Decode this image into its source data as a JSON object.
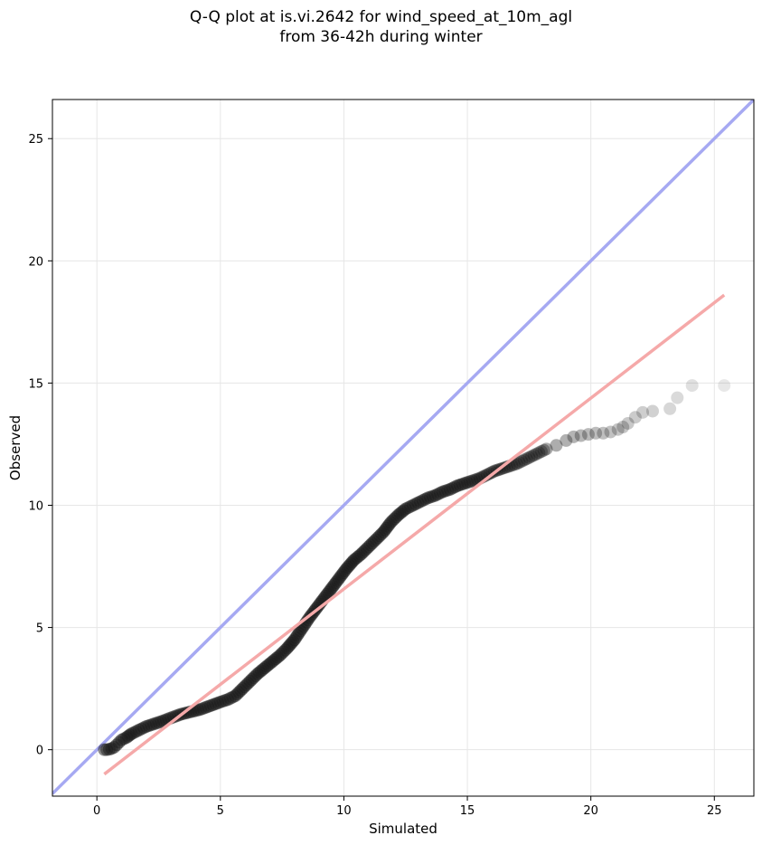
{
  "chart_data": {
    "type": "scatter",
    "title": [
      "Q-Q plot at is.vi.2642 for wind_speed_at_10m_agl",
      "from 36-42h during winter"
    ],
    "xlabel": "Simulated",
    "ylabel": "Observed",
    "xlim": [
      -1.8,
      26.6
    ],
    "ylim": [
      -1.9,
      26.6
    ],
    "xticks": [
      0,
      5,
      10,
      15,
      20,
      25
    ],
    "yticks": [
      0,
      5,
      10,
      15,
      20,
      25
    ],
    "grid": true,
    "colors": {
      "points": "#1a1a1a",
      "identity_line": "#a6a9f2",
      "fit_line": "#f5a9a9",
      "grid": "#e6e6e6"
    },
    "identity_line": {
      "x": [
        -1.8,
        26.6
      ],
      "y": [
        -1.8,
        26.6
      ]
    },
    "fit_line": {
      "x": [
        0.3,
        25.4
      ],
      "y": [
        -1.0,
        18.6
      ]
    },
    "quantiles": {
      "x": [
        0.3,
        0.4,
        0.5,
        0.6,
        0.7,
        0.8,
        0.9,
        1.0,
        1.2,
        1.4,
        1.6,
        1.8,
        2.0,
        2.3,
        2.6,
        3.0,
        3.4,
        3.8,
        4.2,
        4.6,
        5.0,
        5.3,
        5.6,
        5.9,
        6.2,
        6.5,
        6.8,
        7.1,
        7.4,
        7.7,
        8.0,
        8.3,
        8.6,
        8.9,
        9.2,
        9.5,
        9.8,
        10.1,
        10.4,
        10.7,
        11.0,
        11.3,
        11.6,
        11.9,
        12.2,
        12.5,
        12.8,
        13.1,
        13.4,
        13.7,
        14.0,
        14.3,
        14.6,
        14.9,
        15.2,
        15.5,
        15.8,
        16.1,
        16.4,
        16.7,
        17.0,
        17.3,
        17.6,
        17.9,
        18.2,
        18.6,
        19.0,
        19.3,
        19.6,
        19.9,
        20.2,
        20.5,
        20.8,
        21.1,
        21.3,
        21.5,
        21.8,
        22.1,
        22.5,
        23.2,
        23.5,
        24.1,
        25.4
      ],
      "y": [
        0.0,
        0.0,
        0.02,
        0.05,
        0.1,
        0.2,
        0.3,
        0.4,
        0.5,
        0.65,
        0.75,
        0.85,
        0.95,
        1.05,
        1.15,
        1.3,
        1.45,
        1.55,
        1.65,
        1.8,
        1.95,
        2.05,
        2.2,
        2.5,
        2.8,
        3.1,
        3.35,
        3.6,
        3.85,
        4.15,
        4.5,
        4.95,
        5.4,
        5.8,
        6.2,
        6.6,
        7.0,
        7.4,
        7.75,
        8.0,
        8.3,
        8.6,
        8.9,
        9.3,
        9.6,
        9.85,
        10.0,
        10.15,
        10.3,
        10.4,
        10.55,
        10.65,
        10.8,
        10.9,
        11.0,
        11.1,
        11.25,
        11.4,
        11.5,
        11.6,
        11.7,
        11.85,
        12.0,
        12.15,
        12.3,
        12.45,
        12.65,
        12.8,
        12.85,
        12.9,
        12.95,
        12.95,
        13.0,
        13.1,
        13.2,
        13.35,
        13.6,
        13.8,
        13.85,
        13.95,
        14.4,
        14.9,
        14.9
      ]
    }
  }
}
